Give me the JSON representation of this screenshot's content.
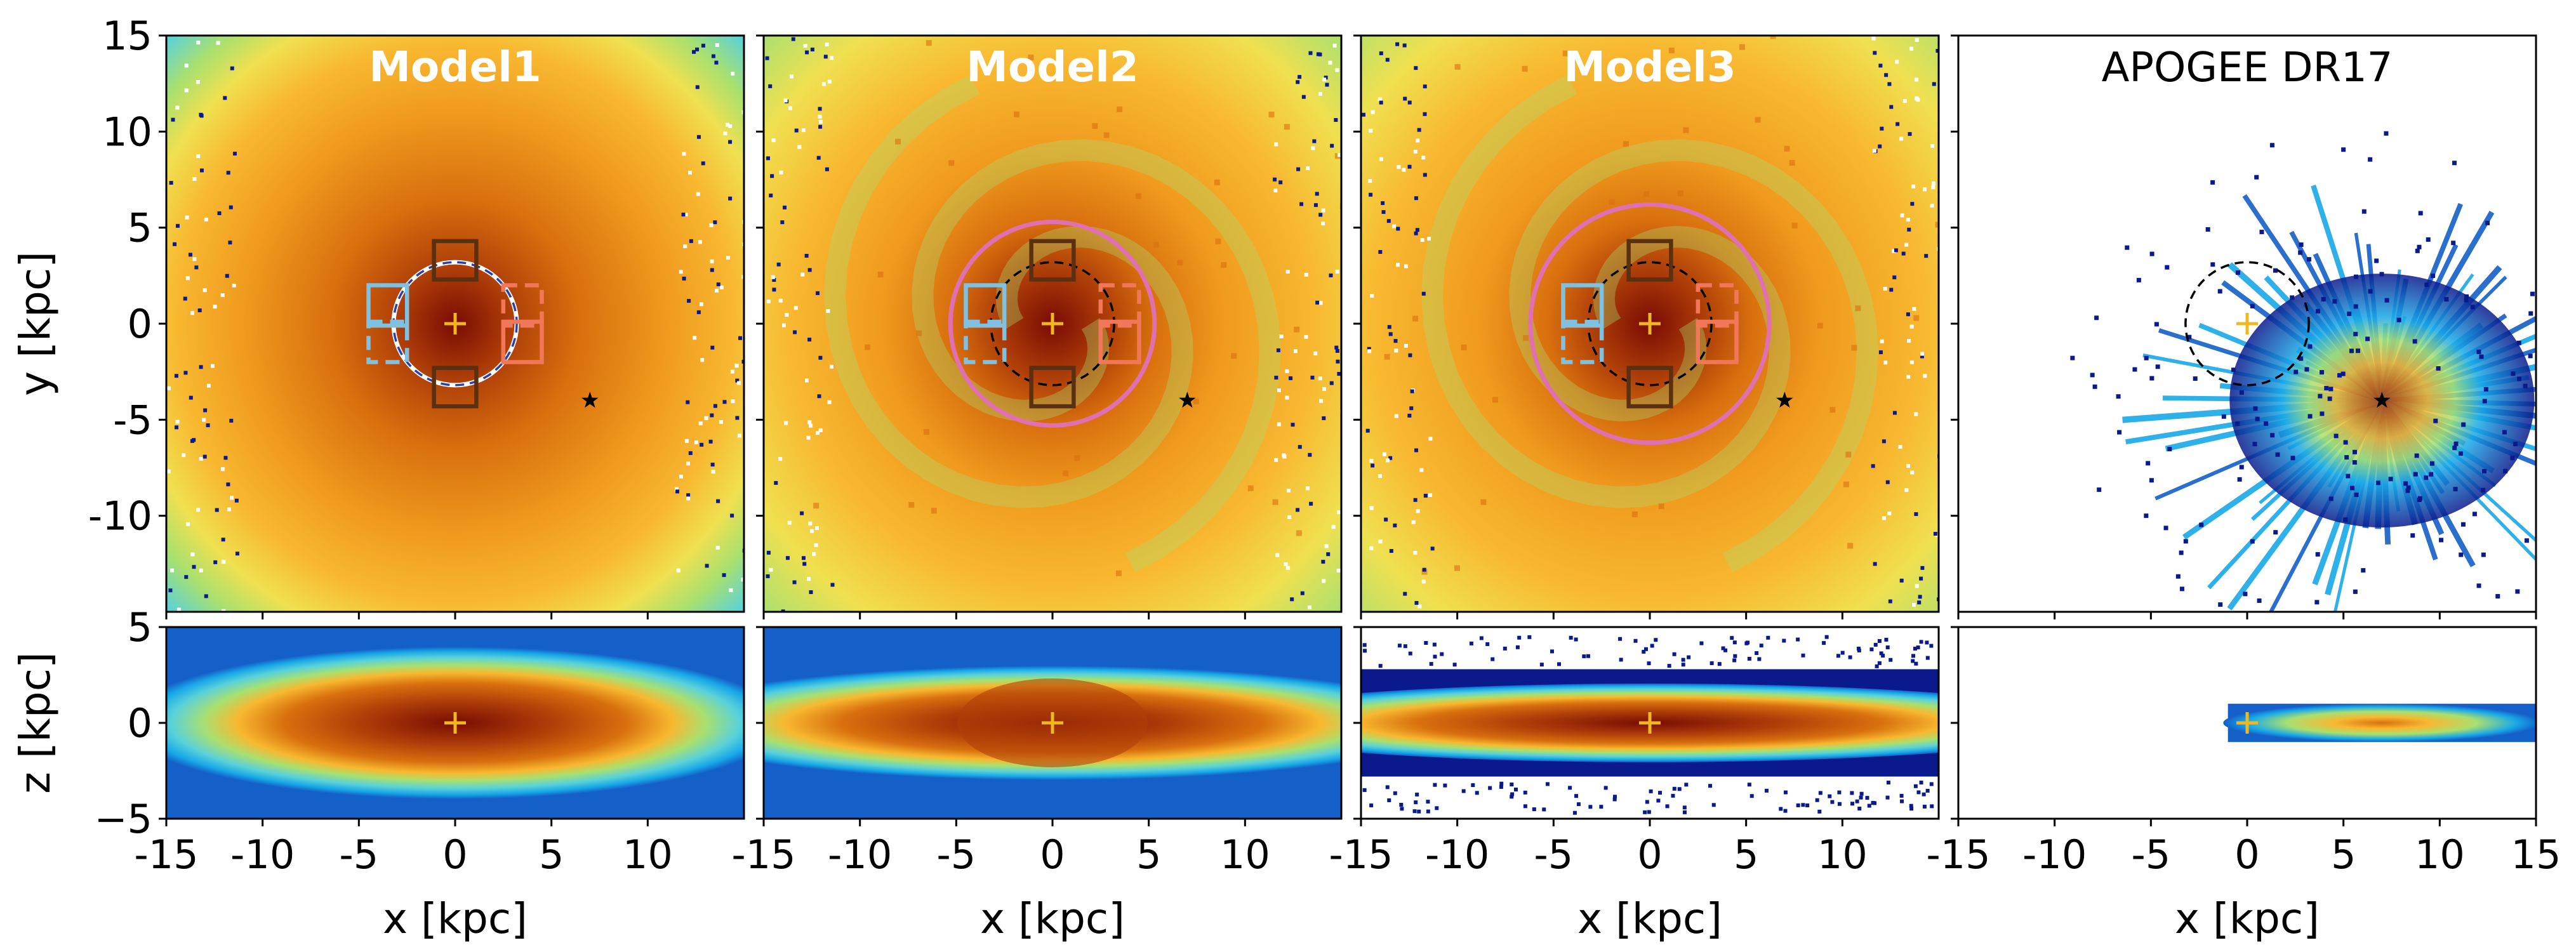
{
  "chart_data": {
    "type": "heatmap",
    "description_units": "kpc",
    "colormap": [
      "#0a1a8c",
      "#1460c8",
      "#18a8e8",
      "#5ad2d8",
      "#a8e070",
      "#f0e050",
      "#f8b830",
      "#f09a1e",
      "#d8700e",
      "#b04008",
      "#7a0c04"
    ],
    "xlim": [
      -15,
      15
    ],
    "ylim_faceon": [
      -15,
      15
    ],
    "ylim_edgeon": [
      -5,
      5
    ],
    "x_ticks": [
      -15,
      -10,
      -5,
      0,
      5,
      10
    ],
    "x_ticks_last_panel": [
      -15,
      -10,
      -5,
      0,
      5,
      10,
      15
    ],
    "x_tick_labels": [
      "-15",
      "-10",
      "-5",
      "0",
      "5",
      "10"
    ],
    "x_tick_labels_last_panel": [
      "-15",
      "-10",
      "-5",
      "0",
      "5",
      "10",
      "15"
    ],
    "y_ticks_faceon": [
      15,
      10,
      5,
      0,
      -5,
      -10
    ],
    "y_tick_labels_faceon": [
      "15",
      "10",
      "5",
      "0",
      "-5",
      "-10"
    ],
    "y_ticks_edgeon": [
      5,
      0,
      -5
    ],
    "y_tick_labels_edgeon": [
      "5",
      "0",
      "−5"
    ],
    "xlabel": "x [kpc]",
    "ylabel_faceon": "y [kpc]",
    "ylabel_edgeon": "z [kpc]",
    "sun_position": {
      "x": 7,
      "y": -4
    },
    "galactic_center": {
      "x": 0,
      "y": 0,
      "z": 0
    },
    "colors": {
      "center_marker": "#f0b820",
      "pink_circle": "#e070b0",
      "dashed_circle": "#000000",
      "box_brown": "#5a3010",
      "box_blue": "#80c0e0",
      "box_salmon": "#f07858",
      "title_light": "#ffffff",
      "title_dark": "#000000"
    },
    "panels": [
      {
        "title": "Model1",
        "pink_circle_radius": 0,
        "dashed_circle_radius": 3.2,
        "has_boxes": true,
        "distribution": "smooth"
      },
      {
        "title": "Model2",
        "pink_circle_radius": 5.3,
        "dashed_circle_radius": 3.2,
        "has_boxes": true,
        "distribution": "spiral"
      },
      {
        "title": "Model3",
        "pink_circle_radius": 6.2,
        "dashed_circle_radius": 3.2,
        "has_boxes": true,
        "distribution": "spiral"
      },
      {
        "title": "APOGEE DR17",
        "pink_circle_radius": 0,
        "dashed_circle_radius": 3.2,
        "has_boxes": false,
        "distribution": "observed"
      }
    ],
    "boxes": [
      {
        "role": "top",
        "x0": -1.1,
        "x1": 1.1,
        "y0": 2.3,
        "y1": 4.3,
        "style": "solid",
        "color": "box_brown"
      },
      {
        "role": "bottom",
        "x0": -1.1,
        "x1": 1.1,
        "y0": -4.3,
        "y1": -2.3,
        "style": "solid",
        "color": "box_brown"
      },
      {
        "role": "left-solid",
        "x0": -4.5,
        "x1": -2.5,
        "y0": -0.1,
        "y1": 2.0,
        "style": "solid",
        "color": "box_blue"
      },
      {
        "role": "left-dashed",
        "x0": -4.5,
        "x1": -2.5,
        "y0": -2.0,
        "y1": 0.1,
        "style": "dashed",
        "color": "box_blue"
      },
      {
        "role": "right-dashed",
        "x0": 2.5,
        "x1": 4.5,
        "y0": -0.1,
        "y1": 2.0,
        "style": "dashed",
        "color": "box_salmon"
      },
      {
        "role": "right-solid",
        "x0": 2.5,
        "x1": 4.5,
        "y0": -2.0,
        "y1": 0.1,
        "style": "solid",
        "color": "box_salmon"
      }
    ]
  }
}
